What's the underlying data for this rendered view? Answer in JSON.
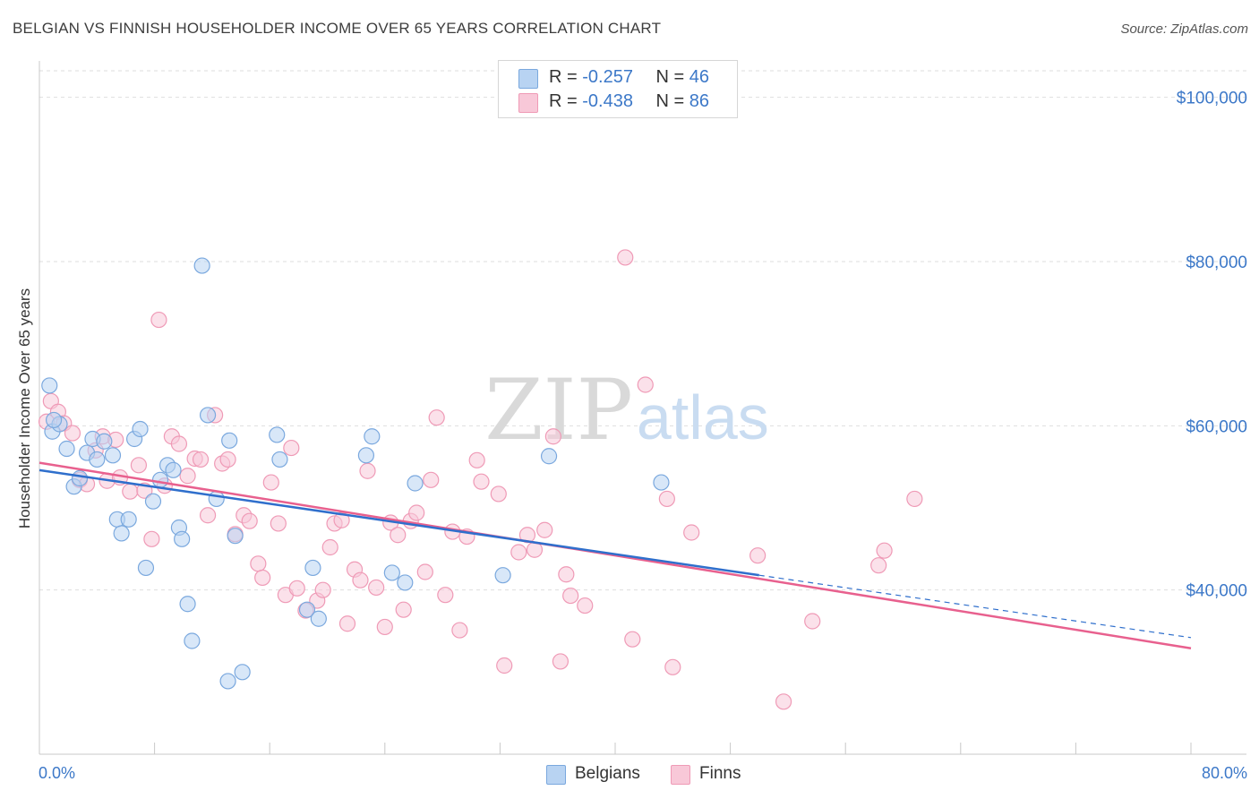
{
  "header": {
    "title": "BELGIAN VS FINNISH HOUSEHOLDER INCOME OVER 65 YEARS CORRELATION CHART",
    "source": "Source: ZipAtlas.com"
  },
  "legend": {
    "rows": [
      {
        "r_label": "R =",
        "r_value": "-0.257",
        "n_label": "N =",
        "n_value": "46"
      },
      {
        "r_label": "R =",
        "r_value": "-0.438",
        "n_label": "N =",
        "n_value": "86"
      }
    ],
    "series_labels": [
      "Belgians",
      "Finns"
    ]
  },
  "watermark": {
    "zip": "ZIP",
    "atlas": "atlas"
  },
  "colors": {
    "belgians_fill": "#b8d3f2",
    "belgians_stroke": "#7aa8de",
    "belgians_line": "#2f6fcc",
    "finns_fill": "#f8c8d8",
    "finns_stroke": "#ef9ab6",
    "finns_line": "#e8608e",
    "axis_text": "#3c78c8",
    "grid": "#dedede"
  },
  "chart_data": {
    "type": "scatter",
    "title": "BELGIAN VS FINNISH HOUSEHOLDER INCOME OVER 65 YEARS CORRELATION CHART",
    "xlabel": "",
    "ylabel": "Householder Income Over 65 years",
    "x_unit": "percent",
    "xlim": [
      0,
      80
    ],
    "ylim": [
      20000,
      104000
    ],
    "x_tick_labels": [
      "0.0%",
      "80.0%"
    ],
    "y_ticks": [
      40000,
      60000,
      80000,
      100000
    ],
    "y_tick_labels": [
      "$40,000",
      "$60,000",
      "$80,000",
      "$100,000"
    ],
    "grid": "horizontal dashed",
    "legend_position": "top-center",
    "series": [
      {
        "name": "Belgians",
        "R": -0.257,
        "N": 46,
        "trend": {
          "x0": 0,
          "y0": 54600,
          "x1": 50,
          "y1": 41800,
          "dashed_extension_to_x": 80,
          "dashed_extension_y": 34200
        },
        "points": [
          [
            0.7,
            64900
          ],
          [
            0.9,
            59300
          ],
          [
            1.4,
            60200
          ],
          [
            1.9,
            57200
          ],
          [
            2.4,
            52600
          ],
          [
            2.8,
            53600
          ],
          [
            3.3,
            56700
          ],
          [
            3.7,
            58400
          ],
          [
            4.0,
            55900
          ],
          [
            4.5,
            58100
          ],
          [
            5.1,
            56400
          ],
          [
            5.4,
            48600
          ],
          [
            5.7,
            46900
          ],
          [
            6.2,
            48600
          ],
          [
            6.6,
            58400
          ],
          [
            7.0,
            59600
          ],
          [
            7.4,
            42700
          ],
          [
            7.9,
            50800
          ],
          [
            8.4,
            53400
          ],
          [
            8.9,
            55200
          ],
          [
            9.3,
            54600
          ],
          [
            9.7,
            47600
          ],
          [
            9.9,
            46200
          ],
          [
            10.3,
            38300
          ],
          [
            10.6,
            33800
          ],
          [
            11.3,
            79500
          ],
          [
            11.7,
            61300
          ],
          [
            12.3,
            51100
          ],
          [
            13.1,
            28900
          ],
          [
            13.2,
            58200
          ],
          [
            13.6,
            46600
          ],
          [
            14.1,
            30000
          ],
          [
            16.5,
            58900
          ],
          [
            16.7,
            55900
          ],
          [
            18.6,
            37600
          ],
          [
            19.0,
            42700
          ],
          [
            19.4,
            36500
          ],
          [
            22.7,
            56400
          ],
          [
            23.1,
            58700
          ],
          [
            24.5,
            42100
          ],
          [
            25.4,
            40900
          ],
          [
            26.1,
            53000
          ],
          [
            32.2,
            41800
          ],
          [
            35.4,
            56300
          ],
          [
            43.2,
            53100
          ],
          [
            1.0,
            60700
          ]
        ]
      },
      {
        "name": "Finns",
        "R": -0.438,
        "N": 86,
        "trend": {
          "x0": 0,
          "y0": 55500,
          "x1": 80,
          "y1": 32900
        },
        "points": [
          [
            0.5,
            60500
          ],
          [
            0.8,
            63000
          ],
          [
            1.3,
            61700
          ],
          [
            1.7,
            60300
          ],
          [
            2.3,
            59100
          ],
          [
            2.8,
            53400
          ],
          [
            3.3,
            52900
          ],
          [
            3.9,
            57000
          ],
          [
            4.4,
            58700
          ],
          [
            4.7,
            53300
          ],
          [
            5.3,
            58300
          ],
          [
            5.6,
            53700
          ],
          [
            6.3,
            52000
          ],
          [
            6.9,
            55200
          ],
          [
            7.3,
            52100
          ],
          [
            7.8,
            46200
          ],
          [
            8.3,
            72900
          ],
          [
            8.7,
            52700
          ],
          [
            9.2,
            58700
          ],
          [
            9.7,
            57800
          ],
          [
            10.3,
            53900
          ],
          [
            10.8,
            56000
          ],
          [
            11.2,
            55900
          ],
          [
            11.7,
            49100
          ],
          [
            12.2,
            61300
          ],
          [
            12.7,
            55400
          ],
          [
            13.1,
            55900
          ],
          [
            13.6,
            46800
          ],
          [
            14.2,
            49100
          ],
          [
            14.6,
            48400
          ],
          [
            15.2,
            43200
          ],
          [
            15.5,
            41500
          ],
          [
            16.1,
            53100
          ],
          [
            16.6,
            48100
          ],
          [
            17.1,
            39400
          ],
          [
            17.5,
            57300
          ],
          [
            17.9,
            40200
          ],
          [
            18.5,
            37500
          ],
          [
            19.3,
            38700
          ],
          [
            19.7,
            40000
          ],
          [
            20.2,
            45200
          ],
          [
            20.5,
            48100
          ],
          [
            21.0,
            48500
          ],
          [
            21.4,
            35900
          ],
          [
            21.9,
            42500
          ],
          [
            22.3,
            41200
          ],
          [
            22.8,
            54500
          ],
          [
            23.4,
            40300
          ],
          [
            24.0,
            35500
          ],
          [
            24.4,
            48200
          ],
          [
            24.9,
            46700
          ],
          [
            25.3,
            37600
          ],
          [
            25.8,
            48400
          ],
          [
            26.2,
            49400
          ],
          [
            26.8,
            42200
          ],
          [
            27.2,
            53400
          ],
          [
            27.6,
            61000
          ],
          [
            28.2,
            39400
          ],
          [
            28.7,
            47100
          ],
          [
            29.2,
            35100
          ],
          [
            29.7,
            46500
          ],
          [
            30.4,
            55800
          ],
          [
            30.7,
            53200
          ],
          [
            31.9,
            51700
          ],
          [
            32.3,
            30800
          ],
          [
            33.3,
            44600
          ],
          [
            33.9,
            46700
          ],
          [
            34.4,
            44900
          ],
          [
            35.1,
            47300
          ],
          [
            35.7,
            58700
          ],
          [
            36.2,
            31300
          ],
          [
            36.6,
            41900
          ],
          [
            36.9,
            39300
          ],
          [
            37.9,
            38100
          ],
          [
            40.7,
            80500
          ],
          [
            41.2,
            34000
          ],
          [
            42.1,
            65000
          ],
          [
            43.6,
            51100
          ],
          [
            44.0,
            30600
          ],
          [
            45.3,
            47000
          ],
          [
            49.9,
            44200
          ],
          [
            51.7,
            26400
          ],
          [
            53.7,
            36200
          ],
          [
            58.3,
            43000
          ],
          [
            58.7,
            44800
          ],
          [
            60.8,
            51100
          ]
        ]
      }
    ]
  }
}
